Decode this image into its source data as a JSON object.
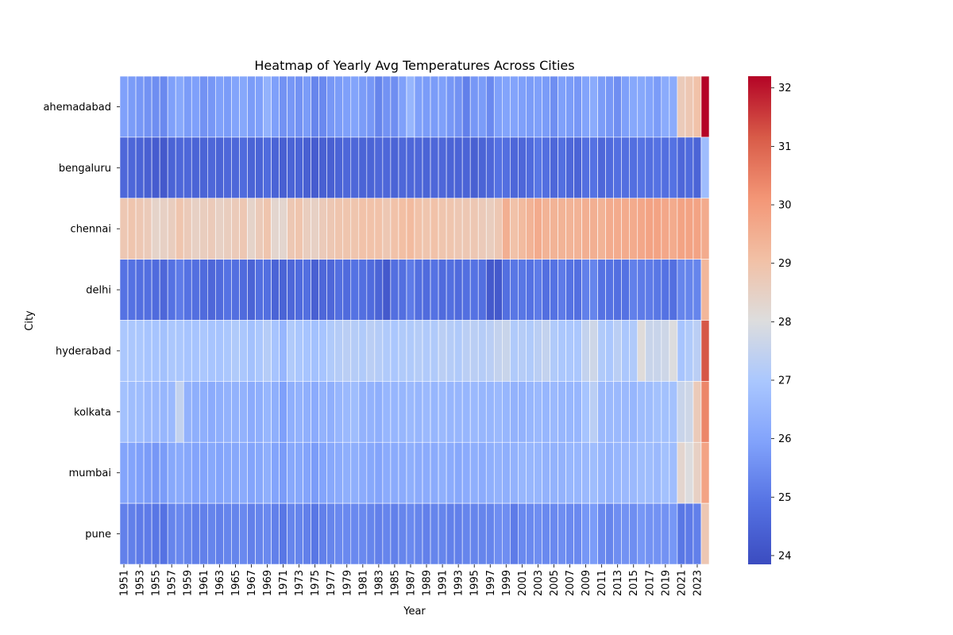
{
  "chart_data": {
    "type": "heatmap",
    "title": "Heatmap of Yearly Avg Temperatures Across Cities",
    "xlabel": "Year",
    "ylabel": "City",
    "x": [
      1951,
      1952,
      1953,
      1954,
      1955,
      1956,
      1957,
      1958,
      1959,
      1960,
      1961,
      1962,
      1963,
      1964,
      1965,
      1966,
      1967,
      1968,
      1969,
      1970,
      1971,
      1972,
      1973,
      1974,
      1975,
      1976,
      1977,
      1978,
      1979,
      1980,
      1981,
      1982,
      1983,
      1984,
      1985,
      1986,
      1987,
      1988,
      1989,
      1990,
      1991,
      1992,
      1993,
      1994,
      1995,
      1996,
      1997,
      1998,
      1999,
      2000,
      2001,
      2002,
      2003,
      2004,
      2005,
      2006,
      2007,
      2008,
      2009,
      2010,
      2011,
      2012,
      2013,
      2014,
      2015,
      2016,
      2017,
      2018,
      2019,
      2020,
      2021,
      2022,
      2023,
      2024
    ],
    "x_tick_labels": [
      "1951",
      "1953",
      "1955",
      "1957",
      "1959",
      "1961",
      "1963",
      "1965",
      "1967",
      "1969",
      "1971",
      "1973",
      "1975",
      "1977",
      "1979",
      "1981",
      "1983",
      "1985",
      "1987",
      "1989",
      "1991",
      "1993",
      "1995",
      "1997",
      "1999",
      "2001",
      "2003",
      "2005",
      "2007",
      "2009",
      "2011",
      "2013",
      "2015",
      "2017",
      "2019",
      "2021",
      "2023"
    ],
    "y": [
      "ahemadabad",
      "bengaluru",
      "chennai",
      "delhi",
      "hyderabad",
      "kolkata",
      "mumbai",
      "pune"
    ],
    "series": [
      {
        "values": [
          25.9,
          25.8,
          25.7,
          25.6,
          25.5,
          25.4,
          25.9,
          26.1,
          25.8,
          25.9,
          25.6,
          25.7,
          25.9,
          25.8,
          26.0,
          26.1,
          25.8,
          25.9,
          26.4,
          25.9,
          25.6,
          25.7,
          25.6,
          25.8,
          25.3,
          25.4,
          25.7,
          25.8,
          25.9,
          26.0,
          25.8,
          25.7,
          25.3,
          25.6,
          25.5,
          25.9,
          26.5,
          25.9,
          25.8,
          25.8,
          25.9,
          25.7,
          25.6,
          25.2,
          25.7,
          25.8,
          25.4,
          25.9,
          26.0,
          26.0,
          25.9,
          25.8,
          25.9,
          25.8,
          25.5,
          25.9,
          25.8,
          25.7,
          26.0,
          26.2,
          25.8,
          25.7,
          25.5,
          25.9,
          26.1,
          26.1,
          26.0,
          25.8,
          26.2,
          26.2,
          28.7,
          28.8,
          29.0,
          32.2
        ]
      },
      {
        "values": [
          24.6,
          24.6,
          24.5,
          24.4,
          24.3,
          24.2,
          24.5,
          24.6,
          24.6,
          24.5,
          24.5,
          24.6,
          24.5,
          24.6,
          24.6,
          24.7,
          24.5,
          24.5,
          24.7,
          24.5,
          24.4,
          24.5,
          24.5,
          24.4,
          24.3,
          24.4,
          24.4,
          24.5,
          24.6,
          24.6,
          24.5,
          24.5,
          24.6,
          24.6,
          24.5,
          24.6,
          24.6,
          24.6,
          24.5,
          24.6,
          24.6,
          24.5,
          24.5,
          24.5,
          24.4,
          24.5,
          24.6,
          24.9,
          24.8,
          24.6,
          24.6,
          24.7,
          25.0,
          24.8,
          24.6,
          24.8,
          24.6,
          24.5,
          24.8,
          24.9,
          24.6,
          24.7,
          24.8,
          24.8,
          24.8,
          24.9,
          24.8,
          24.9,
          24.8,
          24.9,
          24.6,
          24.7,
          24.5,
          26.7
        ]
      },
      {
        "values": [
          28.8,
          28.9,
          28.8,
          28.7,
          28.4,
          28.5,
          28.6,
          28.9,
          28.7,
          28.5,
          28.6,
          28.7,
          28.5,
          28.6,
          28.7,
          28.8,
          28.4,
          28.7,
          28.9,
          28.3,
          28.3,
          28.8,
          28.9,
          28.6,
          28.5,
          28.7,
          28.8,
          28.9,
          28.9,
          28.9,
          29.0,
          29.0,
          29.0,
          28.8,
          29.0,
          29.1,
          29.2,
          29.0,
          28.9,
          29.0,
          28.9,
          28.9,
          28.8,
          28.8,
          28.8,
          28.7,
          28.6,
          28.8,
          29.5,
          29.0,
          29.2,
          29.4,
          29.6,
          29.4,
          29.4,
          29.4,
          29.4,
          29.4,
          29.5,
          29.5,
          29.4,
          29.6,
          29.6,
          29.6,
          29.6,
          29.7,
          29.8,
          29.8,
          29.7,
          29.6,
          29.8,
          29.8,
          29.8,
          29.6
        ]
      },
      {
        "values": [
          24.9,
          24.9,
          24.8,
          24.8,
          24.7,
          24.6,
          24.9,
          25.1,
          24.9,
          24.8,
          24.7,
          24.6,
          24.7,
          24.9,
          24.8,
          24.7,
          24.5,
          24.8,
          24.8,
          24.5,
          24.5,
          24.6,
          24.7,
          24.8,
          24.4,
          24.6,
          24.6,
          24.8,
          24.7,
          24.9,
          24.8,
          24.7,
          24.5,
          24.2,
          24.8,
          24.8,
          25.1,
          24.8,
          24.7,
          24.9,
          24.7,
          24.8,
          24.7,
          24.8,
          24.9,
          24.8,
          24.2,
          24.2,
          24.8,
          25.0,
          25.0,
          24.9,
          25.1,
          24.8,
          24.9,
          25.1,
          24.9,
          24.8,
          25.2,
          25.3,
          24.9,
          24.9,
          24.8,
          24.9,
          25.2,
          25.1,
          25.1,
          25.0,
          24.9,
          24.8,
          25.3,
          25.3,
          25.3,
          29.3
        ]
      },
      {
        "values": [
          27.0,
          27.0,
          27.0,
          26.9,
          26.9,
          26.8,
          27.0,
          27.0,
          26.9,
          26.9,
          27.0,
          26.9,
          26.9,
          27.0,
          27.1,
          27.0,
          26.8,
          27.0,
          27.2,
          26.9,
          26.5,
          27.1,
          27.0,
          26.9,
          26.8,
          26.9,
          27.1,
          27.2,
          27.3,
          27.2,
          27.1,
          27.3,
          27.2,
          27.1,
          27.0,
          27.1,
          27.1,
          27.2,
          27.1,
          27.1,
          27.3,
          27.2,
          27.1,
          27.3,
          27.3,
          27.2,
          27.3,
          27.5,
          27.6,
          27.1,
          27.2,
          27.1,
          27.3,
          27.5,
          27.1,
          27.0,
          27.0,
          27.0,
          27.5,
          27.7,
          27.1,
          27.0,
          27.3,
          27.0,
          27.1,
          28.1,
          27.6,
          27.6,
          27.7,
          28.0,
          26.9,
          27.1,
          27.3,
          31.2
        ]
      },
      {
        "values": [
          26.8,
          26.7,
          26.7,
          26.6,
          26.6,
          26.5,
          26.6,
          27.5,
          26.4,
          26.3,
          26.3,
          26.2,
          26.3,
          26.4,
          26.4,
          26.4,
          26.2,
          26.3,
          26.5,
          26.3,
          25.9,
          26.3,
          26.4,
          26.3,
          26.2,
          26.4,
          26.3,
          26.5,
          26.6,
          26.7,
          26.4,
          26.4,
          26.3,
          26.5,
          26.5,
          26.5,
          26.6,
          26.5,
          26.6,
          26.5,
          26.6,
          26.5,
          26.5,
          26.5,
          26.6,
          26.5,
          26.5,
          26.6,
          26.5,
          26.4,
          26.4,
          26.5,
          26.6,
          26.5,
          26.6,
          26.5,
          26.5,
          26.5,
          26.9,
          27.3,
          26.6,
          26.6,
          26.6,
          26.6,
          26.5,
          26.7,
          26.7,
          26.8,
          26.8,
          26.8,
          27.6,
          27.7,
          28.7,
          30.4
        ]
      },
      {
        "values": [
          26.0,
          26.0,
          25.9,
          25.8,
          25.7,
          25.8,
          26.1,
          26.2,
          26.1,
          26.0,
          26.0,
          26.1,
          26.0,
          26.1,
          26.1,
          26.2,
          26.0,
          26.1,
          26.3,
          26.0,
          25.8,
          26.1,
          26.1,
          26.0,
          25.8,
          26.0,
          26.1,
          26.2,
          26.3,
          26.3,
          26.2,
          26.1,
          26.0,
          26.2,
          26.2,
          26.2,
          26.3,
          26.2,
          26.2,
          26.2,
          26.3,
          26.2,
          26.1,
          26.2,
          26.3,
          26.2,
          26.3,
          26.4,
          26.3,
          26.4,
          26.5,
          26.5,
          26.5,
          26.4,
          26.4,
          26.4,
          26.5,
          26.5,
          26.6,
          26.7,
          26.5,
          26.4,
          26.5,
          26.6,
          26.6,
          26.7,
          26.7,
          26.6,
          26.8,
          26.7,
          28.3,
          28.0,
          28.5,
          29.8
        ]
      },
      {
        "values": [
          25.2,
          25.2,
          25.1,
          25.1,
          25.0,
          24.9,
          25.3,
          25.4,
          25.3,
          25.2,
          25.2,
          25.3,
          25.2,
          25.3,
          25.3,
          25.4,
          25.2,
          25.3,
          25.4,
          25.2,
          25.0,
          25.3,
          25.3,
          25.2,
          25.0,
          25.2,
          25.3,
          25.4,
          25.4,
          25.4,
          25.4,
          25.3,
          25.2,
          25.3,
          25.2,
          25.3,
          25.4,
          25.3,
          25.2,
          25.3,
          25.3,
          25.2,
          25.2,
          25.3,
          25.3,
          25.3,
          25.3,
          25.5,
          25.5,
          25.1,
          25.4,
          25.4,
          25.5,
          25.4,
          25.4,
          25.5,
          25.4,
          25.4,
          25.7,
          25.8,
          25.4,
          25.3,
          25.5,
          25.6,
          25.5,
          25.7,
          25.6,
          25.6,
          25.6,
          25.7,
          25.0,
          25.1,
          25.2,
          28.8
        ]
      }
    ],
    "colorbar": {
      "vmin": 23.85,
      "vmax": 32.2,
      "ticks": [
        24,
        25,
        26,
        27,
        28,
        29,
        30,
        31,
        32
      ],
      "colormap": "coolwarm",
      "low_color": "#3b4cc0",
      "mid_color": "#dddddd",
      "high_color": "#b40426"
    },
    "grid": true
  }
}
